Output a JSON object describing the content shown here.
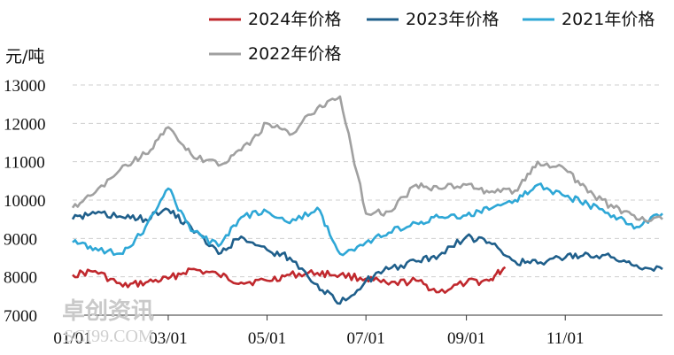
{
  "chart_data": {
    "type": "line",
    "unit_label": "元/吨",
    "ylim": [
      7000,
      13000
    ],
    "y_ticks": [
      7000,
      8000,
      9000,
      10000,
      11000,
      12000,
      13000
    ],
    "x_ticks": [
      "01/01",
      "03/01",
      "05/01",
      "07/01",
      "09/01",
      "11/01"
    ],
    "grid": "horizontal dashed",
    "legend_position": "top",
    "series": [
      {
        "name": "2024年价格",
        "color": "#c0282d",
        "x": [
          "01/01",
          "01/15",
          "02/01",
          "02/15",
          "03/01",
          "03/15",
          "04/01",
          "04/15",
          "05/01",
          "05/15",
          "06/01",
          "06/15",
          "07/01",
          "07/15",
          "08/01",
          "08/15",
          "09/01",
          "09/15",
          "09/25"
        ],
        "values": [
          8050,
          8150,
          7750,
          7850,
          7950,
          8200,
          8050,
          7850,
          7900,
          8050,
          8100,
          8050,
          7950,
          7800,
          7900,
          7600,
          7850,
          7900,
          8250
        ]
      },
      {
        "name": "2023年价格",
        "color": "#1f5f8b",
        "x": [
          "01/01",
          "01/15",
          "02/01",
          "02/15",
          "03/01",
          "03/15",
          "04/01",
          "04/15",
          "05/01",
          "05/15",
          "06/01",
          "06/15",
          "07/01",
          "07/15",
          "08/01",
          "08/15",
          "09/01",
          "09/15",
          "10/01",
          "10/15",
          "11/01",
          "11/15",
          "12/01",
          "12/15",
          "12/31"
        ],
        "values": [
          9500,
          9650,
          9550,
          9500,
          9750,
          9300,
          8600,
          9050,
          8700,
          8500,
          7800,
          7300,
          7900,
          8200,
          8400,
          8550,
          9050,
          8900,
          8400,
          8350,
          8500,
          8600,
          8500,
          8300,
          8200
        ]
      },
      {
        "name": "2021年价格",
        "color": "#2ea7d6",
        "x": [
          "01/01",
          "01/15",
          "02/01",
          "02/15",
          "03/01",
          "03/15",
          "04/01",
          "04/15",
          "05/01",
          "05/15",
          "06/01",
          "06/15",
          "07/01",
          "07/15",
          "08/01",
          "08/15",
          "09/01",
          "09/15",
          "10/01",
          "10/15",
          "11/01",
          "11/15",
          "12/01",
          "12/15",
          "12/31"
        ],
        "values": [
          8900,
          8750,
          8600,
          9300,
          10300,
          9200,
          8800,
          9550,
          9700,
          9400,
          9800,
          8600,
          8900,
          9150,
          9400,
          9550,
          9600,
          9750,
          10000,
          10400,
          10100,
          9900,
          9600,
          9300,
          9650
        ]
      },
      {
        "name": "2022年价格",
        "color": "#a0a0a0",
        "x": [
          "01/01",
          "01/15",
          "02/01",
          "02/15",
          "03/01",
          "03/15",
          "04/01",
          "04/15",
          "05/01",
          "05/15",
          "06/01",
          "06/15",
          "07/01",
          "07/15",
          "08/01",
          "08/15",
          "09/01",
          "09/15",
          "10/01",
          "10/15",
          "11/01",
          "11/15",
          "12/01",
          "12/15",
          "12/31"
        ],
        "values": [
          9800,
          10200,
          10900,
          11200,
          11900,
          11200,
          10900,
          11300,
          12000,
          11700,
          12400,
          12700,
          9650,
          9700,
          10400,
          10300,
          10400,
          10200,
          10250,
          11000,
          10800,
          10200,
          9800,
          9500,
          9500
        ]
      }
    ]
  },
  "watermark": {
    "text_cn": "卓创资讯",
    "text_en": "SCI99.COM"
  }
}
